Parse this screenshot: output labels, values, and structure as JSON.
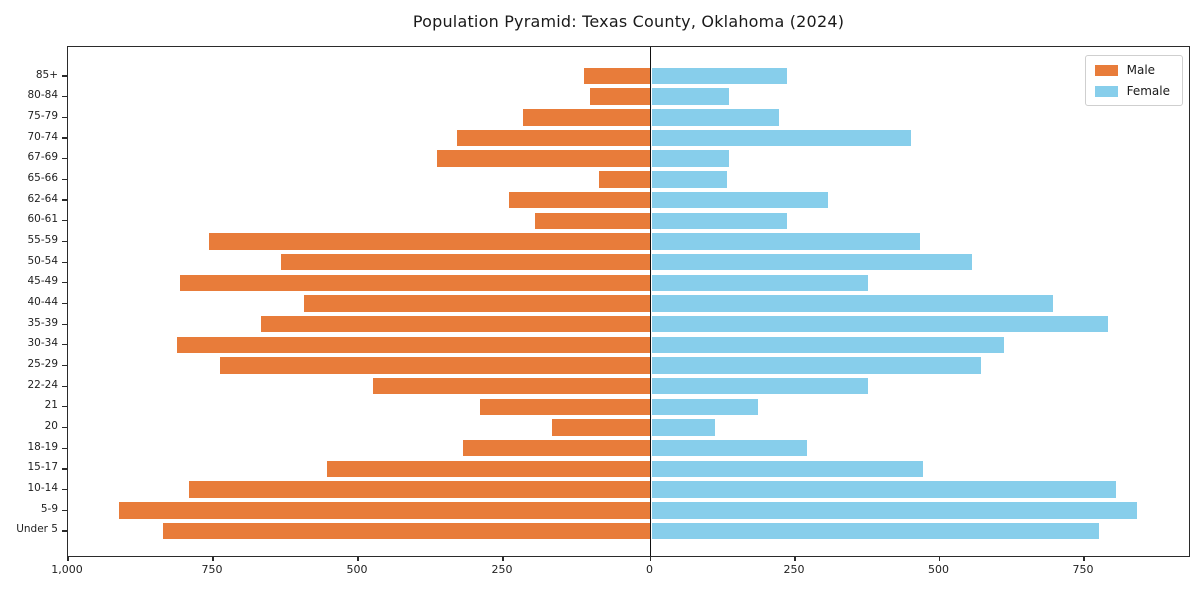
{
  "title": "Population Pyramid: Texas County, Oklahoma (2024)",
  "legend": {
    "male_label": "Male",
    "female_label": "Female",
    "position": "upper right"
  },
  "colors": {
    "male": "#E87C3A",
    "female": "#87CEEB",
    "zero_line": "#111111"
  },
  "chart_data": {
    "type": "bar",
    "subtype": "population-pyramid",
    "title": "Population Pyramid: Texas County, Oklahoma (2024)",
    "xlabel": "",
    "ylabel": "",
    "grid": false,
    "legend_position": "upper right",
    "axis_note": "male values plotted leftward from 0, female rightward",
    "xlim": [
      -1010,
      935
    ],
    "x_ticks": [
      "1,000",
      "750",
      "500",
      "250",
      "0",
      "250",
      "500",
      "750"
    ],
    "x_tick_values": [
      -1000,
      -750,
      -500,
      -250,
      0,
      250,
      500,
      750
    ],
    "categories": [
      "85+",
      "80-84",
      "75-79",
      "70-74",
      "67-69",
      "65-66",
      "62-64",
      "60-61",
      "55-59",
      "50-54",
      "45-49",
      "40-44",
      "35-39",
      "30-34",
      "25-29",
      "22-24",
      "21",
      "20",
      "18-19",
      "15-17",
      "10-14",
      "5-9",
      "Under 5"
    ],
    "series": [
      {
        "name": "Male",
        "color": "#E87C3A",
        "values": [
          115,
          105,
          220,
          335,
          370,
          90,
          245,
          200,
          765,
          640,
          815,
          600,
          675,
          820,
          745,
          480,
          295,
          170,
          325,
          560,
          800,
          920,
          845
        ]
      },
      {
        "name": "Female",
        "color": "#87CEEB",
        "values": [
          235,
          135,
          220,
          450,
          135,
          130,
          305,
          235,
          465,
          555,
          375,
          695,
          790,
          610,
          570,
          375,
          185,
          110,
          270,
          470,
          805,
          840,
          775
        ]
      }
    ]
  }
}
